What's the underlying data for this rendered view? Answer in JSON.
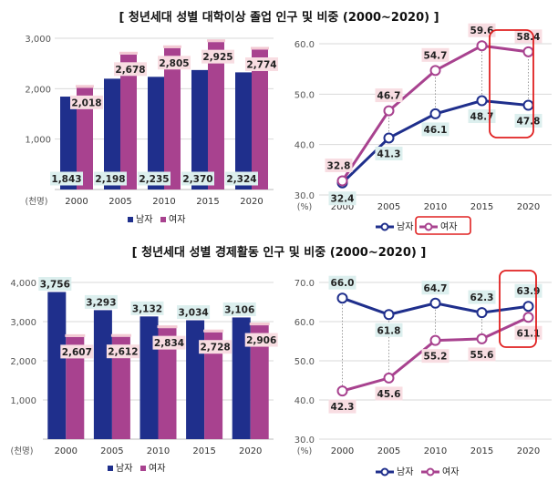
{
  "titles": {
    "top": "[ 청년세대 성별 대학이상 졸업 인구 및 비중 (2000~2020) ]",
    "bottom": "[ 청년세대 성별 경제활동 인구 및 비중 (2000~2020) ]"
  },
  "legend": {
    "male": "남자",
    "female": "여자"
  },
  "units": {
    "population": "(천명)",
    "percent": "(%)"
  },
  "colors": {
    "male": "#1f2f8c",
    "female": "#a8428f",
    "male_label_bg": "#dcefee",
    "female_label_bg": "#f8dde2",
    "highlight": "#e02020"
  },
  "chart_data": [
    {
      "type": "bar",
      "title": "청년세대 성별 대학이상 졸업 인구",
      "categories": [
        "2000",
        "2005",
        "2010",
        "2015",
        "2020"
      ],
      "series": [
        {
          "name": "남자",
          "values": [
            1843,
            2198,
            2235,
            2370,
            2324
          ],
          "labels": [
            "1,843",
            "2,198",
            "2,235",
            "2,370",
            "2,324"
          ]
        },
        {
          "name": "여자",
          "values": [
            2018,
            2678,
            2805,
            2925,
            2774
          ],
          "labels": [
            "2,018",
            "2,678",
            "2,805",
            "2,925",
            "2,774"
          ]
        }
      ],
      "ylim": [
        0,
        3000
      ],
      "yticks": [
        "3,000",
        "2,000",
        "1,000"
      ],
      "ylabel": "(천명)"
    },
    {
      "type": "line",
      "title": "청년세대 성별 대학이상 졸업 비중",
      "categories": [
        "2000",
        "2005",
        "2010",
        "2015",
        "2020"
      ],
      "series": [
        {
          "name": "남자",
          "values": [
            32.4,
            41.3,
            46.1,
            48.7,
            47.8
          ],
          "labels": [
            "32.4",
            "41.3",
            "46.1",
            "48.7",
            "47.8"
          ]
        },
        {
          "name": "여자",
          "values": [
            32.8,
            46.7,
            54.7,
            59.6,
            58.4
          ],
          "labels": [
            "32.8",
            "46.7",
            "54.7",
            "59.6",
            "58.4"
          ]
        }
      ],
      "ylim": [
        30,
        60
      ],
      "yticks": [
        "60.0",
        "50.0",
        "40.0",
        "30.0"
      ],
      "ylabel": "(%)"
    },
    {
      "type": "bar",
      "title": "청년세대 성별 경제활동 인구",
      "categories": [
        "2000",
        "2005",
        "2010",
        "2015",
        "2020"
      ],
      "series": [
        {
          "name": "남자",
          "values": [
            3756,
            3293,
            3132,
            3034,
            3106
          ],
          "labels": [
            "3,756",
            "3,293",
            "3,132",
            "3,034",
            "3,106"
          ]
        },
        {
          "name": "여자",
          "values": [
            2607,
            2612,
            2834,
            2728,
            2906
          ],
          "labels": [
            "2,607",
            "2,612",
            "2,834",
            "2,728",
            "2,906"
          ]
        }
      ],
      "ylim": [
        0,
        4000
      ],
      "yticks": [
        "4,000",
        "3,000",
        "2,000",
        "1,000"
      ],
      "ylabel": "(천명)"
    },
    {
      "type": "line",
      "title": "청년세대 성별 경제활동 비중",
      "categories": [
        "2000",
        "2005",
        "2010",
        "2015",
        "2020"
      ],
      "series": [
        {
          "name": "남자",
          "values": [
            66.0,
            61.8,
            64.7,
            62.3,
            63.9
          ],
          "labels": [
            "66.0",
            "61.8",
            "64.7",
            "62.3",
            "63.9"
          ]
        },
        {
          "name": "여자",
          "values": [
            42.3,
            45.6,
            55.2,
            55.6,
            61.1
          ],
          "labels": [
            "42.3",
            "45.6",
            "55.2",
            "55.6",
            "61.1"
          ]
        }
      ],
      "ylim": [
        30,
        70
      ],
      "yticks": [
        "70.0",
        "60.0",
        "50.0",
        "40.0",
        "30.0"
      ],
      "ylabel": "(%)"
    }
  ]
}
